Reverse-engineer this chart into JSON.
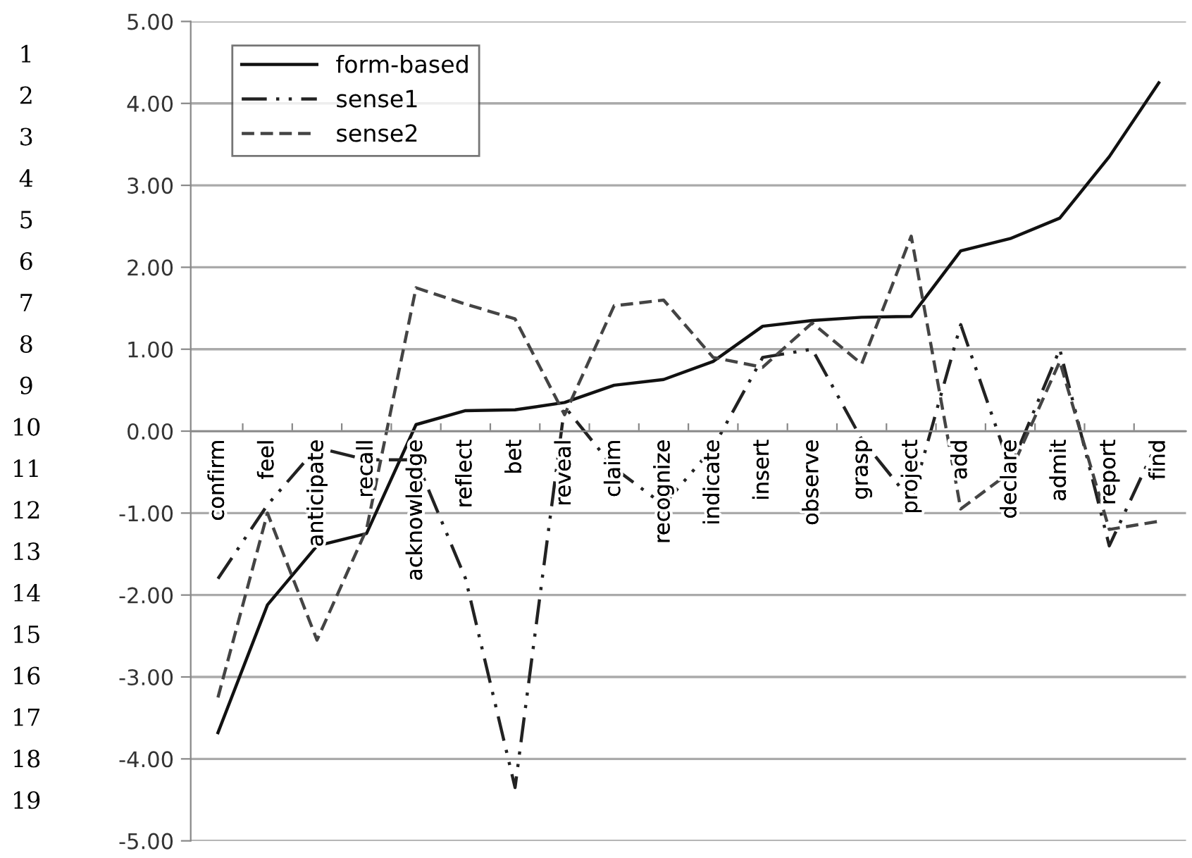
{
  "chart_data": {
    "type": "line",
    "categories": [
      "confirm",
      "feel",
      "anticipate",
      "recall",
      "acknowledge",
      "reflect",
      "bet",
      "reveal",
      "claim",
      "recognize",
      "indicate",
      "insert",
      "observe",
      "grasp",
      "project",
      "add",
      "declare",
      "admit",
      "report",
      "find"
    ],
    "series": [
      {
        "name": "form-based",
        "color": "#111111",
        "line_style": "solid",
        "values": [
          -3.68,
          -2.12,
          -1.4,
          -1.25,
          0.08,
          0.25,
          0.26,
          0.35,
          0.56,
          0.63,
          0.85,
          1.28,
          1.35,
          1.39,
          1.4,
          2.2,
          2.35,
          2.6,
          3.35,
          4.25
        ]
      },
      {
        "name": "sense1",
        "color": "#222222",
        "line_style": "dashdot",
        "values": [
          -1.8,
          -0.9,
          -0.2,
          -0.35,
          -0.35,
          -1.8,
          -4.35,
          0.3,
          -0.45,
          -0.9,
          -0.2,
          0.9,
          1.0,
          -0.1,
          -0.85,
          1.3,
          -0.45,
          1.0,
          -1.4,
          -0.1
        ]
      },
      {
        "name": "sense2",
        "color": "#444444",
        "line_style": "dashed",
        "values": [
          -3.25,
          -1.0,
          -2.55,
          -1.2,
          1.75,
          1.55,
          1.37,
          0.2,
          1.53,
          1.6,
          0.9,
          0.78,
          1.32,
          0.82,
          2.38,
          -0.95,
          -0.5,
          0.85,
          -1.2,
          -1.1
        ]
      }
    ],
    "ylim": [
      -5,
      5
    ],
    "yticks": [
      {
        "value": -5,
        "label": "-5.00"
      },
      {
        "value": -4,
        "label": "-4.00"
      },
      {
        "value": -3,
        "label": "-3.00"
      },
      {
        "value": -2,
        "label": "-2.00"
      },
      {
        "value": -1,
        "label": "-1.00"
      },
      {
        "value": 0,
        "label": "0.00"
      },
      {
        "value": 1,
        "label": "1.00"
      },
      {
        "value": 2,
        "label": "2.00"
      },
      {
        "value": 3,
        "label": "3.00"
      },
      {
        "value": 4,
        "label": "4.00"
      },
      {
        "value": 5,
        "label": "5.00"
      }
    ],
    "grid": "y",
    "legend": "top left",
    "marker": "none",
    "annotations": [
      "1\n2\n3\n4\n5\n6\n7\n8\n9\n10\n11\n12\n13\n14\n15\n16\n17\n18\n19"
    ]
  }
}
